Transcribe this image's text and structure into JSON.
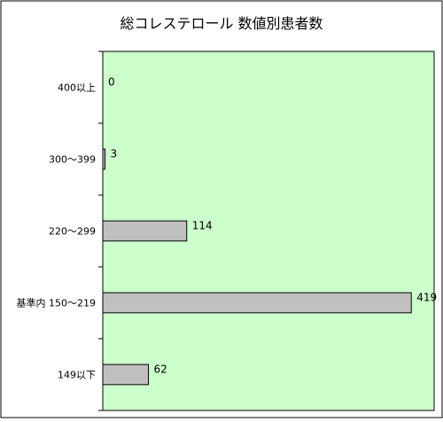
{
  "chart_data": {
    "type": "bar",
    "orientation": "horizontal",
    "title": "総コレステロール 数値別患者数",
    "xlabel": "",
    "ylabel": "",
    "categories": [
      "400以上",
      "300〜399",
      "220〜299",
      "基準内 150〜219",
      "149以下"
    ],
    "values": [
      0,
      3,
      114,
      419,
      62
    ],
    "xlim": [
      0,
      450
    ],
    "grid": false,
    "legend": "none",
    "colors": {
      "plot_background": "#ccffcc",
      "bar_fill": "#c0c0c0",
      "bar_stroke": "#000000",
      "frame": "#000000"
    }
  }
}
